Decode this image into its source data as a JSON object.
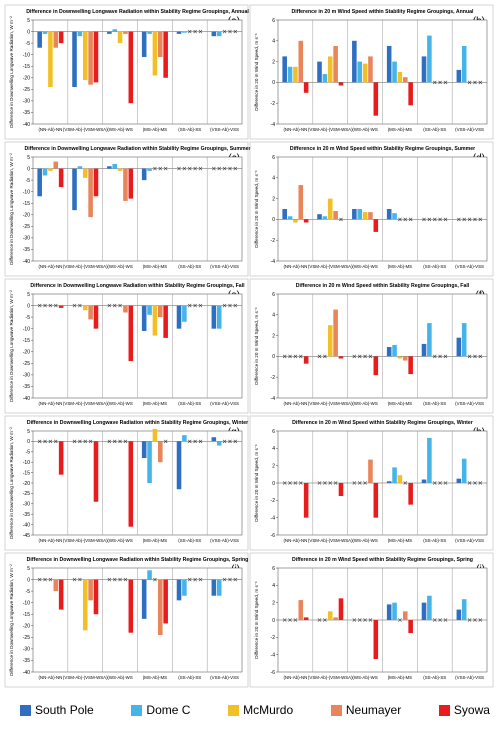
{
  "colors": {
    "South Pole": "#2e6fc1",
    "Dome C": "#47b4e8",
    "McMurdo": "#f2c026",
    "Neumayer": "#e8855a",
    "Syowa": "#e81c1c"
  },
  "legend": [
    "South Pole",
    "Dome C",
    "McMurdo",
    "Neumayer",
    "Syowa"
  ],
  "chart_data": [
    {
      "panel": "(a)",
      "type": "bar",
      "title": "Difference in Downwelling Longwave Radiation within Stability Regime Groupings, Annual",
      "ylabel": "Difference in Downwelling Longwave Radiation, W m⁻²",
      "ylim": [
        -40,
        5
      ],
      "yticks": [
        5,
        0,
        -5,
        -10,
        -15,
        -20,
        -25,
        -30,
        -35,
        -40
      ],
      "categories": [
        "(NN-Ab)-NN",
        "(VSM-Ab)-(VSM-WSA)",
        "(WS-Ab)-WS",
        "(MS-Ab)-MS",
        "(SS-Ab)-SS",
        "(VSS-Ab)-VSS"
      ],
      "series": [
        {
          "name": "South Pole",
          "values": [
            -7,
            -24,
            -1,
            -11,
            -1,
            -2
          ]
        },
        {
          "name": "Dome C",
          "values": [
            -1,
            -2,
            1,
            -1,
            -0.5,
            -2
          ]
        },
        {
          "name": "McMurdo",
          "values": [
            -24,
            -21,
            -5,
            -19,
            null,
            null
          ]
        },
        {
          "name": "Neumayer",
          "values": [
            -7,
            -23,
            -1,
            -11,
            null,
            null
          ]
        },
        {
          "name": "Syowa",
          "values": [
            -5,
            -22,
            -31,
            -20,
            null,
            null
          ]
        }
      ]
    },
    {
      "panel": "(b)",
      "type": "bar",
      "title": "Difference in 20 m Wind Speed within Stability Regime Groupings, Annual",
      "ylabel": "Difference in 20 m Wind Speed, m s⁻¹",
      "ylim": [
        -4,
        6
      ],
      "yticks": [
        6,
        4,
        2,
        0,
        -2,
        -4
      ],
      "categories": [
        "(NN-Ab)-NN",
        "(VSM-Ab)-(VSM-WSA)",
        "(WS-Ab)-WS",
        "(MS-Ab)-MS",
        "(SS-Ab)-SS",
        "(VSS-Ab)-VSS"
      ],
      "series": [
        {
          "name": "South Pole",
          "values": [
            2.5,
            2,
            4,
            3.5,
            2.5,
            1.2
          ]
        },
        {
          "name": "Dome C",
          "values": [
            1.5,
            0.8,
            2,
            2,
            4.5,
            3.5
          ]
        },
        {
          "name": "McMurdo",
          "values": [
            1.5,
            2.5,
            1.8,
            1,
            null,
            null
          ]
        },
        {
          "name": "Neumayer",
          "values": [
            4,
            3.5,
            2.5,
            0.5,
            null,
            null
          ]
        },
        {
          "name": "Syowa",
          "values": [
            -1,
            -0.3,
            -3.2,
            -2.2,
            null,
            null
          ]
        }
      ]
    },
    {
      "panel": "(c)",
      "type": "bar",
      "title": "Difference in Downwelling Longwave Radiation within Stability Regime Groupings, Summer",
      "ylabel": "Difference in Downwelling Longwave Radiation, W m⁻²",
      "ylim": [
        -40,
        5
      ],
      "yticks": [
        5,
        0,
        -5,
        -10,
        -15,
        -20,
        -25,
        -30,
        -35,
        -40
      ],
      "categories": [
        "(NN-Ab)-NN",
        "(VSM-Ab)-(VSM-WSA)",
        "(WS-Ab)-WS",
        "(MS-Ab)-MS",
        "(SS-Ab)-SS",
        "(VSS-Ab)-VSS"
      ],
      "series": [
        {
          "name": "South Pole",
          "values": [
            -12,
            -18,
            1,
            -5,
            null,
            null
          ]
        },
        {
          "name": "Dome C",
          "values": [
            -3,
            1,
            2,
            -1,
            null,
            null
          ]
        },
        {
          "name": "McMurdo",
          "values": [
            -1,
            -4,
            -1,
            null,
            null,
            null
          ]
        },
        {
          "name": "Neumayer",
          "values": [
            3,
            -21,
            -14,
            null,
            null,
            null
          ]
        },
        {
          "name": "Syowa",
          "values": [
            -8,
            -12,
            -13,
            null,
            null,
            null
          ]
        }
      ]
    },
    {
      "panel": "(d)",
      "type": "bar",
      "title": "Difference in 20 m Wind Speed within Stability Regime Groupings, Summer",
      "ylabel": "Difference in 20 m Wind Speed, m s⁻¹",
      "ylim": [
        -4,
        6
      ],
      "yticks": [
        6,
        4,
        2,
        0,
        -2,
        -4
      ],
      "categories": [
        "(NN-Ab)-NN",
        "(VSM-Ab)-(VSM-WSA)",
        "(WS-Ab)-WS",
        "(MS-Ab)-MS",
        "(SS-Ab)-SS",
        "(VSS-Ab)-VSS"
      ],
      "series": [
        {
          "name": "South Pole",
          "values": [
            1,
            0.5,
            1,
            1,
            null,
            null
          ]
        },
        {
          "name": "Dome C",
          "values": [
            0.3,
            0.3,
            1,
            0.6,
            null,
            null
          ]
        },
        {
          "name": "McMurdo",
          "values": [
            -0.3,
            2,
            0.7,
            null,
            null,
            null
          ]
        },
        {
          "name": "Neumayer",
          "values": [
            3.3,
            0.8,
            0.7,
            null,
            null,
            null
          ]
        },
        {
          "name": "Syowa",
          "values": [
            -0.3,
            null,
            -1.2,
            null,
            null,
            null
          ]
        }
      ]
    },
    {
      "panel": "(e)",
      "type": "bar",
      "title": "Difference in Downwelling Longwave Radiation within Stability Regime Groupings, Fall",
      "ylabel": "Difference in Downwelling Longwave Radiation, W m⁻²",
      "ylim": [
        -40,
        5
      ],
      "yticks": [
        5,
        0,
        -5,
        -10,
        -15,
        -20,
        -25,
        -30,
        -35,
        -40
      ],
      "categories": [
        "(NN-Ab)-NN",
        "(VSM-Ab)-(VSM-WSA)",
        "(WS-Ab)-WS",
        "(MS-Ab)-MS",
        "(SS-Ab)-SS",
        "(VSS-Ab)-VSS"
      ],
      "series": [
        {
          "name": "South Pole",
          "values": [
            null,
            null,
            null,
            -11,
            -10,
            -10
          ]
        },
        {
          "name": "Dome C",
          "values": [
            null,
            null,
            null,
            -4,
            -7,
            -10
          ]
        },
        {
          "name": "McMurdo",
          "values": [
            null,
            -2,
            null,
            -13,
            null,
            null
          ]
        },
        {
          "name": "Neumayer",
          "values": [
            null,
            -6,
            -3,
            -5,
            null,
            null
          ]
        },
        {
          "name": "Syowa",
          "values": [
            -1,
            -10,
            -24,
            -14,
            null,
            null
          ]
        }
      ]
    },
    {
      "panel": "(f)",
      "type": "bar",
      "title": "Difference in 20 m Wind Speed within Stability Regime Groupings, Fall",
      "ylabel": "Difference in 20 m Wind Speed, m s⁻¹",
      "ylim": [
        -4,
        6
      ],
      "yticks": [
        6,
        4,
        2,
        0,
        -2,
        -4
      ],
      "categories": [
        "(NN-Ab)-NN",
        "(VSM-Ab)-(VSM-WSA)",
        "(WS-Ab)-WS",
        "(MS-Ab)-MS",
        "(SS-Ab)-SS",
        "(VSS-Ab)-VSS"
      ],
      "series": [
        {
          "name": "South Pole",
          "values": [
            null,
            null,
            null,
            0.9,
            1.2,
            1.8
          ]
        },
        {
          "name": "Dome C",
          "values": [
            null,
            null,
            null,
            1.1,
            3.2,
            3.2
          ]
        },
        {
          "name": "McMurdo",
          "values": [
            null,
            3,
            null,
            -0.2,
            null,
            null
          ]
        },
        {
          "name": "Neumayer",
          "values": [
            null,
            4.5,
            null,
            -0.4,
            null,
            null
          ]
        },
        {
          "name": "Syowa",
          "values": [
            -0.7,
            -0.2,
            -1.8,
            -1.7,
            null,
            null
          ]
        }
      ]
    },
    {
      "panel": "(g)",
      "type": "bar",
      "title": "Difference in Downwelling Longwave Radiation within Stability Regime Groupings, Winter",
      "ylabel": "Difference in Downwelling Longwave Radiation, W m⁻²",
      "ylim": [
        -45,
        5
      ],
      "yticks": [
        5,
        0,
        -5,
        -10,
        -15,
        -20,
        -25,
        -30,
        -35,
        -40,
        -45
      ],
      "categories": [
        "(NN-Ab)-NN",
        "(VSM-Ab)-(VSM-WSA)",
        "(WS-Ab)-WS",
        "(MS-Ab)-MS",
        "(SS-Ab)-SS",
        "(VSS-Ab)-VSS"
      ],
      "series": [
        {
          "name": "South Pole",
          "values": [
            null,
            null,
            null,
            -8,
            -23,
            2
          ]
        },
        {
          "name": "Dome C",
          "values": [
            null,
            null,
            null,
            -20,
            3,
            -2
          ]
        },
        {
          "name": "McMurdo",
          "values": [
            null,
            null,
            null,
            6,
            null,
            null
          ]
        },
        {
          "name": "Neumayer",
          "values": [
            null,
            null,
            null,
            -10,
            null,
            null
          ]
        },
        {
          "name": "Syowa",
          "values": [
            -16,
            -29,
            -41,
            null,
            null,
            null
          ]
        }
      ]
    },
    {
      "panel": "(h)",
      "type": "bar",
      "title": "Difference in 20 m Wind Speed within Stability Regime Groupings, Winter",
      "ylabel": "Difference in 20 m Wind Speed, m s⁻¹",
      "ylim": [
        -6,
        6
      ],
      "yticks": [
        6,
        4,
        2,
        0,
        -2,
        -4,
        -6
      ],
      "categories": [
        "(NN-Ab)-NN",
        "(VSM-Ab)-(VSM-WSA)",
        "(WS-Ab)-WS",
        "(MS-Ab)-MS",
        "(SS-Ab)-SS",
        "(VSS-Ab)-VSS"
      ],
      "series": [
        {
          "name": "South Pole",
          "values": [
            null,
            null,
            null,
            0.2,
            0.4,
            0.5
          ]
        },
        {
          "name": "Dome C",
          "values": [
            null,
            null,
            null,
            1.8,
            5.2,
            2.8
          ]
        },
        {
          "name": "McMurdo",
          "values": [
            null,
            null,
            null,
            0.9,
            null,
            null
          ]
        },
        {
          "name": "Neumayer",
          "values": [
            null,
            null,
            2.7,
            null,
            null,
            null
          ]
        },
        {
          "name": "Syowa",
          "values": [
            -4,
            -1.5,
            -4,
            -2.5,
            null,
            null
          ]
        }
      ]
    },
    {
      "panel": "(i)",
      "type": "bar",
      "title": "Difference in Downwelling Longwave Radiation within Stability Regime Groupings, Spring",
      "ylabel": "Difference in Downwelling Longwave Radiation, W m⁻²",
      "ylim": [
        -40,
        5
      ],
      "yticks": [
        5,
        0,
        -5,
        -10,
        -15,
        -20,
        -25,
        -30,
        -35,
        -40
      ],
      "categories": [
        "(NN-Ab)-NN",
        "(VSM-Ab)-(VSM-WSA)",
        "(WS-Ab)-WS",
        "(MS-Ab)-MS",
        "(SS-Ab)-SS",
        "(VSS-Ab)-VSS"
      ],
      "series": [
        {
          "name": "South Pole",
          "values": [
            null,
            null,
            null,
            -17,
            -9,
            -7
          ]
        },
        {
          "name": "Dome C",
          "values": [
            null,
            null,
            null,
            4,
            -7,
            -7
          ]
        },
        {
          "name": "McMurdo",
          "values": [
            null,
            -22,
            null,
            null,
            null,
            null
          ]
        },
        {
          "name": "Neumayer",
          "values": [
            -5,
            -9,
            null,
            -24,
            null,
            null
          ]
        },
        {
          "name": "Syowa",
          "values": [
            -13,
            -15,
            -23,
            -19,
            null,
            null
          ]
        }
      ]
    },
    {
      "panel": "(j)",
      "type": "bar",
      "title": "Difference in 20 m Wind Speed within Stability Regime Groupings, Spring",
      "ylabel": "Difference in 20 m Wind Speed, m s⁻¹",
      "ylim": [
        -6,
        6
      ],
      "yticks": [
        6,
        4,
        2,
        0,
        -2,
        -4,
        -6
      ],
      "categories": [
        "(NN-Ab)-NN",
        "(VSM-Ab)-(VSM-WSA)",
        "(WS-Ab)-WS",
        "(MS-Ab)-MS",
        "(SS-Ab)-SS",
        "(VSS-Ab)-VSS"
      ],
      "series": [
        {
          "name": "South Pole",
          "values": [
            null,
            null,
            null,
            1.8,
            2,
            1.2
          ]
        },
        {
          "name": "Dome C",
          "values": [
            null,
            null,
            null,
            2,
            2.8,
            2.4
          ]
        },
        {
          "name": "McMurdo",
          "values": [
            null,
            1,
            null,
            null,
            null,
            null
          ]
        },
        {
          "name": "Neumayer",
          "values": [
            2.3,
            0.3,
            null,
            1,
            null,
            null
          ]
        },
        {
          "name": "Syowa",
          "values": [
            0.3,
            2.5,
            -4.5,
            -1.5,
            null,
            null
          ]
        }
      ]
    }
  ]
}
